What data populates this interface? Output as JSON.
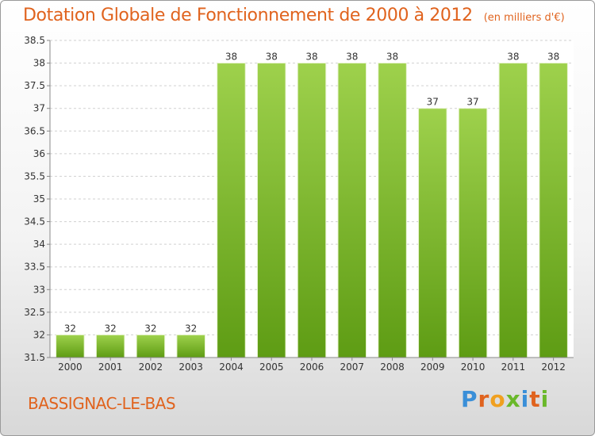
{
  "header": {
    "title": "Dotation Globale de Fonctionnement de 2000 à 2012",
    "unit": "(en milliers d'€)"
  },
  "footer": {
    "commune": "BASSIGNAC-LE-BAS",
    "logo_text": "Proxiti",
    "logo_letter_colors": [
      "#3a8fd8",
      "#e0631e",
      "#f0a020",
      "#6ab82a",
      "#3a8fd8",
      "#e0631e",
      "#6ab82a"
    ]
  },
  "colors": {
    "bar_light": "#9ed14c",
    "bar_dark": "#5e9c14",
    "grid": "#d0d0d0",
    "title": "#e0631e"
  },
  "chart_data": {
    "type": "bar",
    "categories": [
      "2000",
      "2001",
      "2002",
      "2003",
      "2004",
      "2005",
      "2006",
      "2007",
      "2008",
      "2009",
      "2010",
      "2011",
      "2012"
    ],
    "values": [
      32,
      32,
      32,
      32,
      38,
      38,
      38,
      38,
      38,
      37,
      37,
      38,
      38
    ],
    "data_labels": [
      "32",
      "32",
      "32",
      "32",
      "38",
      "38",
      "38",
      "38",
      "38",
      "37",
      "37",
      "38",
      "38"
    ],
    "ylim": [
      31.5,
      38.5
    ],
    "yticks": [
      "31.5",
      "32",
      "32.5",
      "33",
      "33.5",
      "34",
      "34.5",
      "35",
      "35.5",
      "36",
      "36.5",
      "37",
      "37.5",
      "38",
      "38.5"
    ],
    "grid": true,
    "legend": false
  }
}
